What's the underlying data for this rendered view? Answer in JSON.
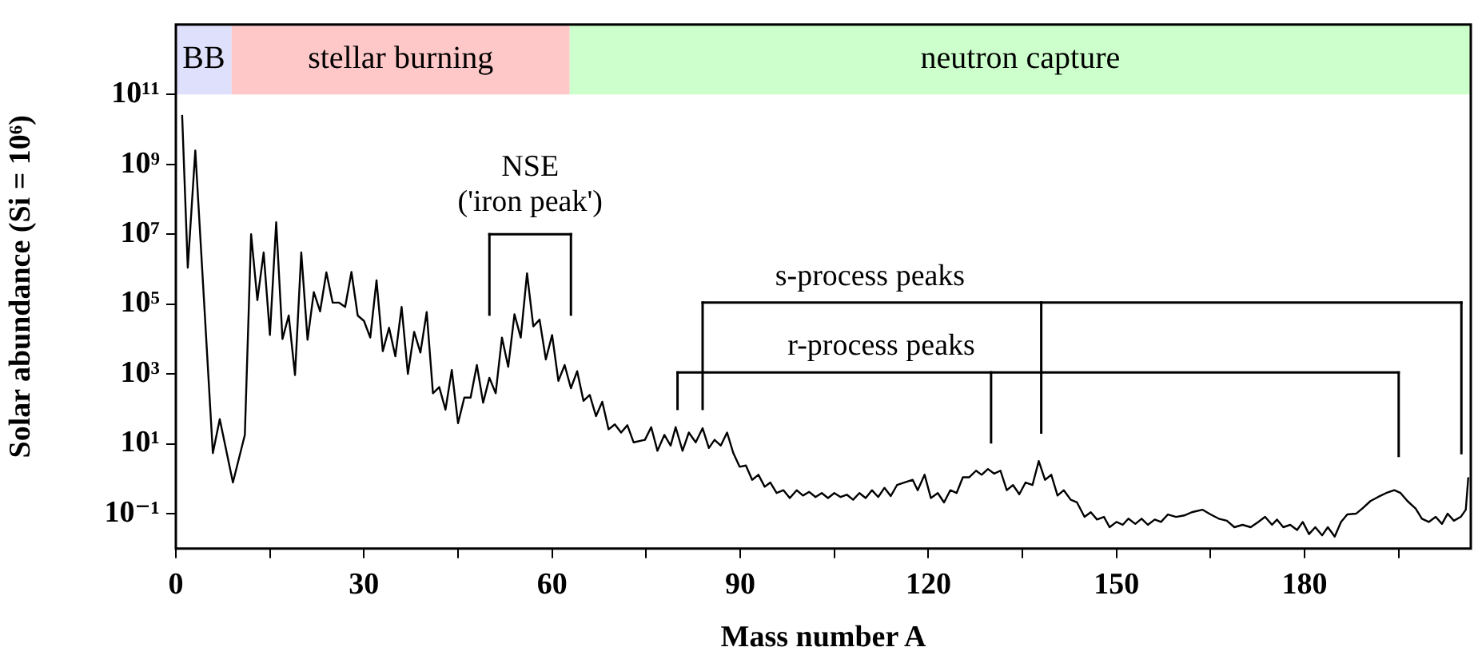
{
  "chart_data": {
    "type": "line",
    "xlabel": "Mass number A",
    "ylabel": "Solar abundance (Si = 10⁶)",
    "x": [
      1.0,
      1.9,
      3.1,
      5.9,
      7.0,
      9.1,
      11.0,
      12,
      13,
      14,
      15,
      16,
      17,
      18,
      19,
      20,
      21,
      22,
      23,
      24,
      25,
      26,
      27,
      28,
      29,
      30,
      31,
      32,
      33,
      34,
      35,
      36,
      37,
      38,
      39,
      40,
      41,
      42,
      43,
      44,
      45,
      46,
      47,
      48,
      49,
      50,
      51,
      52,
      53,
      54,
      55,
      56,
      57,
      58,
      59,
      60,
      61,
      62,
      63,
      64,
      65,
      66,
      67,
      68,
      69,
      70,
      71,
      72,
      73,
      74.8,
      75.8,
      76.8,
      77.9,
      78.9,
      79.7,
      80.8,
      81.8,
      82.9,
      84.0,
      85.0,
      85.9,
      86.9,
      87.9,
      88.9,
      89.9,
      90.9,
      91.9,
      92.9,
      93.9,
      94.8,
      95.8,
      96.9,
      97.9,
      99,
      100,
      101,
      102,
      103,
      104,
      105,
      106,
      107,
      108,
      109,
      110,
      111,
      112,
      113,
      114,
      115,
      117.5,
      118.3,
      119.4,
      120.4,
      121.5,
      122.5,
      123.5,
      124.5,
      125.5,
      126.5,
      127.6,
      128.5,
      129.5,
      130.5,
      131.5,
      132.5,
      133.5,
      134.5,
      135.5,
      136.6,
      137.6,
      138.6,
      139.6,
      140.6,
      141.6,
      142.7,
      143.7,
      144.9,
      145.9,
      146.9,
      148.0,
      148.9,
      150.0,
      151.0,
      151.9,
      153.0,
      154.0,
      155.0,
      156.1,
      157.1,
      158.2,
      159.5,
      160.8,
      162.0,
      163.7,
      165.0,
      166.3,
      167.6,
      168.8,
      170.1,
      171.4,
      172.6,
      173.7,
      174.8,
      175.6,
      176.6,
      177.7,
      178.8,
      179.7,
      180.7,
      181.7,
      182.8,
      183.7,
      184.8,
      185.8,
      186.8,
      188.2,
      189.2,
      190.5,
      191.7,
      193.0,
      194.3,
      195.3,
      196.4,
      197.7,
      198.7,
      199.8,
      200.9,
      201.9,
      202.8,
      203.8,
      204.9,
      205.7,
      206.1
    ],
    "series": [
      {
        "color": "#000000",
        "values": [
          26000000000.0,
          1100000.0,
          2500000000.0,
          5.4,
          51,
          0.78,
          18,
          10000000.0,
          130000.0,
          3000000.0,
          13000.0,
          22000000.0,
          10000.0,
          47000.0,
          930,
          3000000.0,
          9500.0,
          220000.0,
          62000.0,
          810000.0,
          110000.0,
          110000.0,
          83000.0,
          830000.0,
          47000.0,
          33000.0,
          11000.0,
          480000.0,
          4500.0,
          21000.0,
          3200.0,
          83000.0,
          1000.0,
          16000.0,
          4100.0,
          59000.0,
          280,
          420,
          95,
          1300.0,
          39,
          210,
          210,
          1800.0,
          150,
          780,
          280,
          11000.0,
          1600.0,
          51000.0,
          11000.0,
          760000.0,
          23000.0,
          36000.0,
          2600.0,
          13000.0,
          630,
          1800.0,
          390,
          1200.0,
          170,
          250,
          62,
          160,
          26,
          36,
          21,
          34,
          11,
          13,
          30,
          6.3,
          18,
          8.9,
          30,
          6.3,
          21,
          11,
          28,
          7.6,
          13,
          8.9,
          21,
          5.4,
          2.2,
          2.4,
          0.93,
          1.3,
          0.59,
          0.78,
          0.39,
          0.47,
          0.28,
          0.47,
          0.33,
          0.42,
          0.3,
          0.39,
          0.28,
          0.39,
          0.3,
          0.35,
          0.25,
          0.39,
          0.28,
          0.47,
          0.3,
          0.55,
          0.32,
          0.66,
          0.93,
          0.47,
          1.3,
          0.28,
          0.39,
          0.21,
          0.47,
          0.39,
          1.1,
          1.1,
          1.7,
          1.3,
          1.9,
          1.4,
          1.7,
          0.47,
          0.66,
          0.36,
          0.78,
          0.66,
          3.2,
          0.93,
          1.3,
          0.33,
          0.47,
          0.25,
          0.21,
          0.081,
          0.11,
          0.068,
          0.081,
          0.041,
          0.058,
          0.048,
          0.072,
          0.051,
          0.072,
          0.048,
          0.068,
          0.058,
          0.095,
          0.081,
          0.089,
          0.11,
          0.13,
          0.095,
          0.072,
          0.063,
          0.041,
          0.048,
          0.041,
          0.058,
          0.081,
          0.048,
          0.068,
          0.041,
          0.048,
          0.034,
          0.058,
          0.026,
          0.041,
          0.024,
          0.041,
          0.022,
          0.058,
          0.095,
          0.1,
          0.14,
          0.23,
          0.3,
          0.39,
          0.47,
          0.39,
          0.23,
          0.14,
          0.072,
          0.058,
          0.081,
          0.051,
          0.1,
          0.063,
          0.081,
          0.13,
          1.1
        ]
      }
    ],
    "log": "y",
    "xlim": [
      0,
      206.5
    ],
    "ylim": [
      0.01,
      10000000000000.0
    ],
    "xticks": [
      0,
      {
        "value": 15,
        "label": null
      },
      30,
      {
        "value": 45,
        "label": null
      },
      60,
      {
        "value": 75,
        "label": null
      },
      90,
      {
        "value": 105,
        "label": null
      },
      120,
      {
        "value": 135,
        "label": null
      },
      150,
      {
        "value": 165,
        "label": null
      },
      180,
      {
        "value": 195,
        "label": null
      }
    ],
    "yticks": [
      {
        "value": 0.1,
        "label": "10⁻¹"
      },
      {
        "value": 10,
        "label": "10¹"
      },
      {
        "value": 1000,
        "label": "10³"
      },
      {
        "value": 100000,
        "label": "10⁵"
      },
      {
        "value": 10000000,
        "label": "10⁷"
      },
      {
        "value": 1000000000,
        "label": "10⁹"
      },
      {
        "value": 100000000000,
        "label": "10¹¹"
      }
    ],
    "grid": false,
    "legend": false,
    "marker": "none",
    "line_style": "solid",
    "bands": [
      {
        "axis": "x",
        "from": 0,
        "to": 8.9,
        "label": "BB",
        "color": "#dfe0fb"
      },
      {
        "axis": "x",
        "from": 8.9,
        "to": 62.8,
        "label": "stellar burning",
        "color": "#ffc8c8"
      },
      {
        "axis": "x",
        "from": 62.8,
        "to": 206.5,
        "label": "neutron capture",
        "color": "#ccffcc"
      }
    ],
    "annotations": [
      "NSE",
      "('iron peak')",
      "s-process peaks",
      "r-process peaks"
    ]
  }
}
